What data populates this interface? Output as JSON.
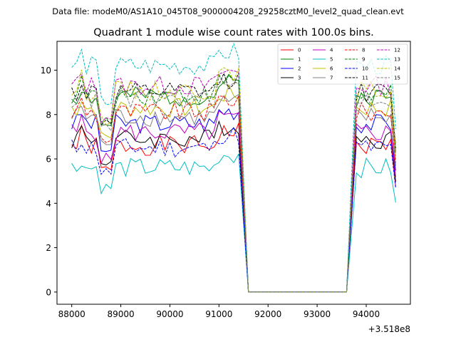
{
  "header": {
    "data_file": "Data file: modeM0/AS1A10_045T08_9000004208_29258cztM0_level2_quad_clean.evt"
  },
  "chart_data": {
    "type": "line",
    "title": "Quadrant 1 module wise count rates with 100.0s bins.",
    "xlabel": "",
    "ylabel": "",
    "x_offset_label": "+3.518e8",
    "xlim": [
      87700,
      94900
    ],
    "ylim": [
      -0.55,
      11.3
    ],
    "xticks": [
      88000,
      89000,
      90000,
      91000,
      92000,
      93000,
      94000
    ],
    "xtick_labels": [
      "88000",
      "89000",
      "90000",
      "91000",
      "92000",
      "93000",
      "94000"
    ],
    "yticks": [
      0,
      2,
      4,
      6,
      8,
      10
    ],
    "ytick_labels": [
      "0",
      "2",
      "4",
      "6",
      "8",
      "10"
    ],
    "grid": false,
    "legend_position": "top-right",
    "x_segments": [
      {
        "start": 88000,
        "count": 35,
        "step": 100
      },
      {
        "start": 91600,
        "count": 21,
        "step": 100
      },
      {
        "start": 93800,
        "count": 9,
        "step": 100
      }
    ],
    "series": [
      {
        "name": "0",
        "color": "#ff0000",
        "dash": "solid",
        "base": 6.6,
        "dip": 5.5,
        "seed": 1
      },
      {
        "name": "1",
        "color": "#008000",
        "dash": "solid",
        "base": 8.8,
        "dip": 7.5,
        "seed": 2
      },
      {
        "name": "2",
        "color": "#0000ff",
        "dash": "solid",
        "base": 7.6,
        "dip": 6.4,
        "seed": 3
      },
      {
        "name": "3",
        "color": "#000000",
        "dash": "solid",
        "base": 6.9,
        "dip": 5.9,
        "seed": 4
      },
      {
        "name": "4",
        "color": "#bf00bf",
        "dash": "solid",
        "base": 7.2,
        "dip": 6.0,
        "seed": 5
      },
      {
        "name": "5",
        "color": "#00bfbf",
        "dash": "solid",
        "base": 5.6,
        "dip": 4.7,
        "seed": 6
      },
      {
        "name": "6",
        "color": "#bfbf00",
        "dash": "solid",
        "base": 8.3,
        "dip": 7.0,
        "seed": 7
      },
      {
        "name": "7",
        "color": "#808080",
        "dash": "solid",
        "base": 7.9,
        "dip": 6.7,
        "seed": 8
      },
      {
        "name": "8",
        "color": "#ff0000",
        "dash": "dashed",
        "base": 8.1,
        "dip": 6.9,
        "seed": 9
      },
      {
        "name": "9",
        "color": "#008000",
        "dash": "dashed",
        "base": 8.9,
        "dip": 7.6,
        "seed": 10
      },
      {
        "name": "10",
        "color": "#0000ff",
        "dash": "dashed",
        "base": 6.5,
        "dip": 5.4,
        "seed": 11
      },
      {
        "name": "11",
        "color": "#000000",
        "dash": "dashed",
        "base": 9.0,
        "dip": 7.7,
        "seed": 12
      },
      {
        "name": "12",
        "color": "#bf00bf",
        "dash": "dashed",
        "base": 9.3,
        "dip": 7.9,
        "seed": 13
      },
      {
        "name": "13",
        "color": "#00bfbf",
        "dash": "dashed",
        "base": 10.2,
        "dip": 8.6,
        "seed": 14
      },
      {
        "name": "14",
        "color": "#bfbf00",
        "dash": "dashed",
        "base": 9.1,
        "dip": 7.8,
        "seed": 15
      },
      {
        "name": "15",
        "color": "#808080",
        "dash": "dashed",
        "base": 8.7,
        "dip": 7.4,
        "seed": 16
      }
    ]
  }
}
